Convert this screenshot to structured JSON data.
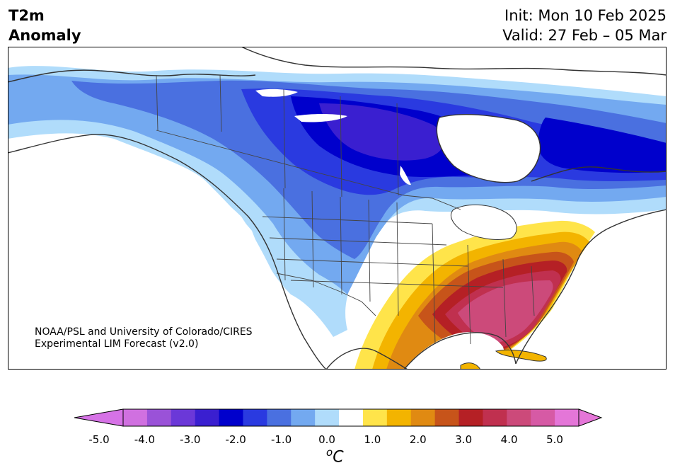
{
  "title": {
    "left_line1": "T2m",
    "left_line2": "Anomaly",
    "init": "Init: Mon 10 Feb 2025",
    "valid": "Valid: 27 Feb – 05 Mar"
  },
  "credit": {
    "line1": "NOAA/PSL and University of Colorado/CIRES",
    "line2": "Experimental LIM Forecast (v2.0)"
  },
  "colorbar": {
    "unit": "oC",
    "tick_labels": [
      "-5.0",
      "-4.0",
      "-3.0",
      "-2.0",
      "-1.0",
      "0.0",
      "1.0",
      "2.0",
      "3.0",
      "4.0",
      "5.0"
    ],
    "levels": [
      -5.0,
      -4.5,
      -4.0,
      -3.5,
      -3.0,
      -2.5,
      -2.0,
      -1.5,
      -1.0,
      -0.5,
      0.5,
      1.0,
      1.5,
      2.0,
      2.5,
      3.0,
      3.5,
      4.0,
      4.5,
      5.0
    ],
    "colors": [
      "#d070e0",
      "#9a52d8",
      "#6b38d8",
      "#3a1fd0",
      "#0000cc",
      "#2a3ae0",
      "#4a70e0",
      "#73a9f0",
      "#b0dcfb",
      "#ffffff",
      "#ffe44a",
      "#f3b400",
      "#e08a12",
      "#c7541a",
      "#b52025",
      "#c0304f",
      "#cc4a7a",
      "#d65aa5",
      "#e476d8"
    ],
    "under_color": "#d672e6",
    "over_color": "#e576d8"
  },
  "map": {
    "region": "North America",
    "colors": {
      "land": "#ffffff",
      "coast": "#333333",
      "border": "#444444"
    }
  }
}
